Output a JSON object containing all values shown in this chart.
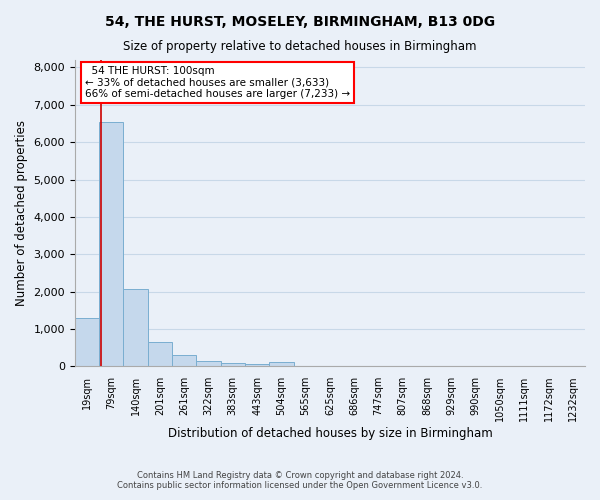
{
  "title": "54, THE HURST, MOSELEY, BIRMINGHAM, B13 0DG",
  "subtitle": "Size of property relative to detached houses in Birmingham",
  "xlabel": "Distribution of detached houses by size in Birmingham",
  "ylabel": "Number of detached properties",
  "footer_line1": "Contains HM Land Registry data © Crown copyright and database right 2024.",
  "footer_line2": "Contains public sector information licensed under the Open Government Licence v3.0.",
  "categories": [
    "19sqm",
    "79sqm",
    "140sqm",
    "201sqm",
    "261sqm",
    "322sqm",
    "383sqm",
    "443sqm",
    "504sqm",
    "565sqm",
    "625sqm",
    "686sqm",
    "747sqm",
    "807sqm",
    "868sqm",
    "929sqm",
    "990sqm",
    "1050sqm",
    "1111sqm",
    "1172sqm",
    "1232sqm"
  ],
  "values": [
    1300,
    6550,
    2070,
    650,
    290,
    140,
    90,
    70,
    100,
    0,
    0,
    0,
    0,
    0,
    0,
    0,
    0,
    0,
    0,
    0,
    0
  ],
  "bar_color": "#c5d8ec",
  "bar_edge_color": "#7aaed0",
  "grid_color": "#c8d8e8",
  "background_color": "#eaf0f8",
  "annotation_text_line1": "54 THE HURST: 100sqm",
  "annotation_text_line2": "← 33% of detached houses are smaller (3,633)",
  "annotation_text_line3": "66% of semi-detached houses are larger (7,233) →",
  "vline_color": "#cc0000",
  "vline_x": 0.575,
  "ylim": [
    0,
    8200
  ],
  "yticks": [
    0,
    1000,
    2000,
    3000,
    4000,
    5000,
    6000,
    7000,
    8000
  ],
  "figsize": [
    6.0,
    5.0
  ],
  "dpi": 100
}
